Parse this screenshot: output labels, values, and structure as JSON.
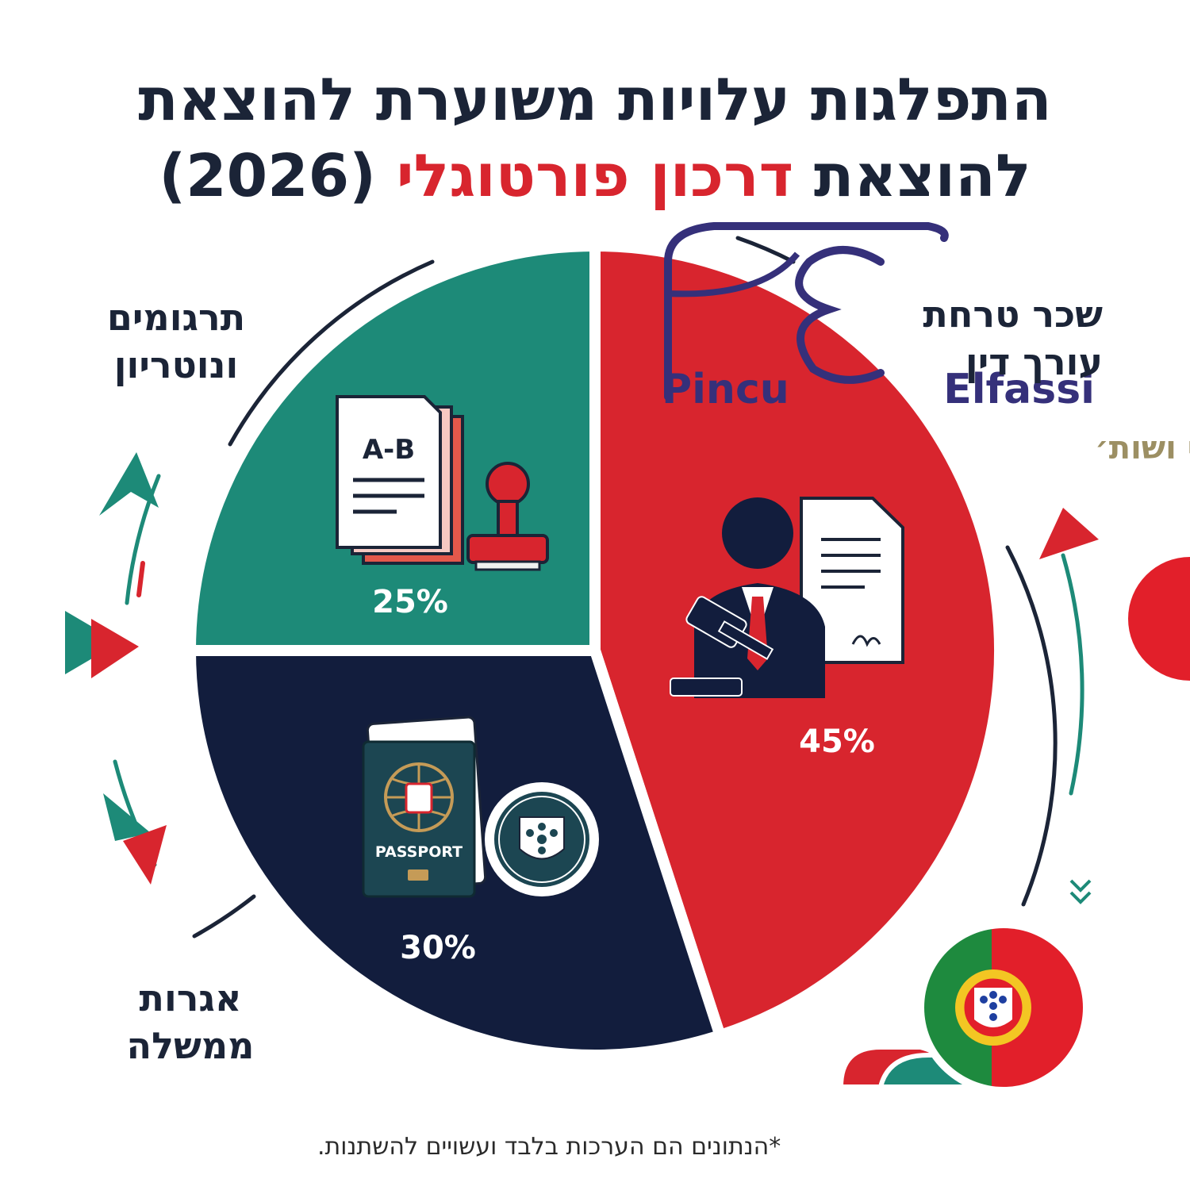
{
  "title": {
    "line1": "התפלגות עלויות משוערת להוצאת",
    "line2_prefix": "להוצאת",
    "line2_highlight": "דרכון פורטוגלי",
    "line2_suffix": "(2026)"
  },
  "labels": {
    "translations_line1": "תרגומים",
    "translations_line2": "ונוטריון",
    "lawyer_line1": "שכר טרחת",
    "lawyer_line2": "עורך דין",
    "govt_line1": "אגרות",
    "govt_line2": "ממשלה"
  },
  "logo": {
    "latin_left": "Pincu",
    "latin_right": "Elfassi",
    "hebrew": "פינקו-אלפסי ושות׳"
  },
  "icons": {
    "translation": "document-translation-stamp-icon",
    "lawyer": "lawyer-gavel-document-icon",
    "government": "passport-seal-icon",
    "flag": "portugal-flag-icon"
  },
  "colors": {
    "lawyer": "#d8252e",
    "translations": "#1d8a78",
    "government": "#121d3d",
    "title_text": "#1b2437",
    "logo": "#35307a"
  },
  "chart_data": {
    "type": "pie",
    "title": "התפלגות עלויות משוערת להוצאת להוצאת דרכון פורטוגלי (2026)",
    "slices": [
      {
        "label": "שכר טרחת עורך דין",
        "value": 45,
        "display": "45%",
        "color": "#d8252e"
      },
      {
        "label": "אגרות ממשלה",
        "value": 30,
        "display": "30%",
        "color": "#121d3d"
      },
      {
        "label": "תרגומים ונוטריון",
        "value": 25,
        "display": "25%",
        "color": "#1d8a78"
      }
    ],
    "start_angle_deg": 0,
    "direction": "clockwise"
  },
  "footnote": "*הנתונים הם הערכות בלבד ועשויים להשתנות."
}
